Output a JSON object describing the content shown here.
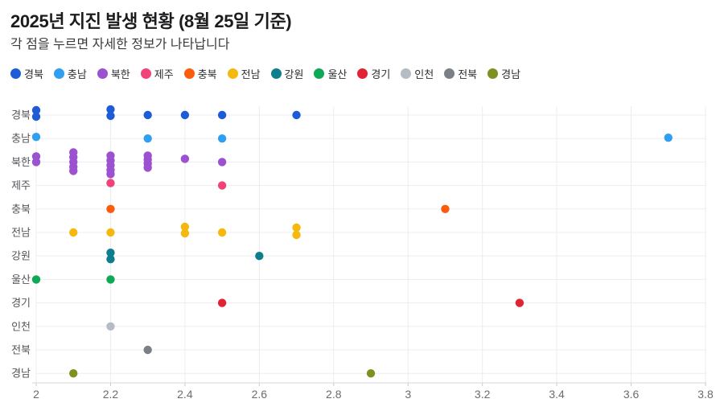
{
  "header": {
    "title": "2025년 지진 발생 현황 (8월 25일 기준)",
    "subtitle": "각 점을 누르면 자세한 정보가 나타납니다"
  },
  "chart_data": {
    "type": "scatter",
    "title": "2025년 지진 발생 현황 (8월 25일 기준)",
    "subtitle": "각 점을 누르면 자세한 정보가 나타납니다",
    "orientation": "categorical-y-rows, numeric-x (magnitude)",
    "xlim": [
      2,
      3.8
    ],
    "xticks": [
      {
        "v": 2,
        "label": "2"
      },
      {
        "v": 2.2,
        "label": "2.2"
      },
      {
        "v": 2.4,
        "label": "2.4"
      },
      {
        "v": 2.6,
        "label": "2.6"
      },
      {
        "v": 2.8,
        "label": "2.8"
      },
      {
        "v": 3,
        "label": "3"
      },
      {
        "v": 3.2,
        "label": "3.2"
      },
      {
        "v": 3.4,
        "label": "3.4"
      },
      {
        "v": 3.6,
        "label": "3.6"
      },
      {
        "v": 3.8,
        "label": "3.8"
      }
    ],
    "categories": [
      "경북",
      "충남",
      "북한",
      "제주",
      "충북",
      "전남",
      "강원",
      "울산",
      "경기",
      "인천",
      "전북",
      "경남"
    ],
    "grid": true,
    "legend_position": "top",
    "series": [
      {
        "name": "경북",
        "color": "#1d5cd6",
        "points": [
          [
            2.0,
            -6
          ],
          [
            2.0,
            2
          ],
          [
            2.2,
            -7
          ],
          [
            2.2,
            1
          ],
          [
            2.3,
            0
          ],
          [
            2.4,
            0
          ],
          [
            2.5,
            0
          ],
          [
            2.7,
            0
          ]
        ]
      },
      {
        "name": "충남",
        "color": "#2f9ff2",
        "points": [
          [
            2.0,
            -2
          ],
          [
            2.3,
            0
          ],
          [
            2.5,
            0
          ],
          [
            3.7,
            -1
          ]
        ]
      },
      {
        "name": "북한",
        "color": "#9b51d0",
        "points": [
          [
            2.0,
            -7
          ],
          [
            2.0,
            0
          ],
          [
            2.1,
            -12
          ],
          [
            2.1,
            -6
          ],
          [
            2.1,
            0
          ],
          [
            2.1,
            6
          ],
          [
            2.1,
            11
          ],
          [
            2.2,
            -8
          ],
          [
            2.2,
            -2
          ],
          [
            2.2,
            4
          ],
          [
            2.2,
            10
          ],
          [
            2.2,
            15
          ],
          [
            2.3,
            -8
          ],
          [
            2.3,
            -3
          ],
          [
            2.3,
            2
          ],
          [
            2.3,
            7
          ],
          [
            2.4,
            -4
          ],
          [
            2.5,
            0
          ]
        ]
      },
      {
        "name": "제주",
        "color": "#f0437a",
        "points": [
          [
            2.2,
            -3
          ],
          [
            2.5,
            0
          ]
        ]
      },
      {
        "name": "충북",
        "color": "#fb5d0d",
        "points": [
          [
            2.2,
            0
          ],
          [
            3.1,
            0
          ]
        ]
      },
      {
        "name": "전남",
        "color": "#f4b80e",
        "points": [
          [
            2.1,
            0
          ],
          [
            2.2,
            0
          ],
          [
            2.4,
            -7
          ],
          [
            2.4,
            1
          ],
          [
            2.5,
            0
          ],
          [
            2.7,
            -6
          ],
          [
            2.7,
            3
          ]
        ]
      },
      {
        "name": "강원",
        "color": "#0d7e8c",
        "points": [
          [
            2.2,
            -4
          ],
          [
            2.2,
            4
          ],
          [
            2.6,
            0
          ]
        ]
      },
      {
        "name": "울산",
        "color": "#0fa857",
        "points": [
          [
            2.0,
            0
          ],
          [
            2.2,
            0
          ]
        ]
      },
      {
        "name": "경기",
        "color": "#e02433",
        "points": [
          [
            2.5,
            0
          ],
          [
            3.3,
            0
          ]
        ]
      },
      {
        "name": "인천",
        "color": "#b6bcc4",
        "points": [
          [
            2.2,
            0
          ]
        ]
      },
      {
        "name": "전북",
        "color": "#7b8087",
        "points": [
          [
            2.3,
            0
          ]
        ]
      },
      {
        "name": "경남",
        "color": "#7e901f",
        "points": [
          [
            2.1,
            0
          ],
          [
            2.9,
            0
          ]
        ]
      }
    ],
    "style": {
      "point_radius": 5.2,
      "grid_color": "#ebecef",
      "row_line_color": "#ededf0",
      "axis_line_color": "#d6d7db",
      "tick_color": "#c9cacd"
    }
  }
}
